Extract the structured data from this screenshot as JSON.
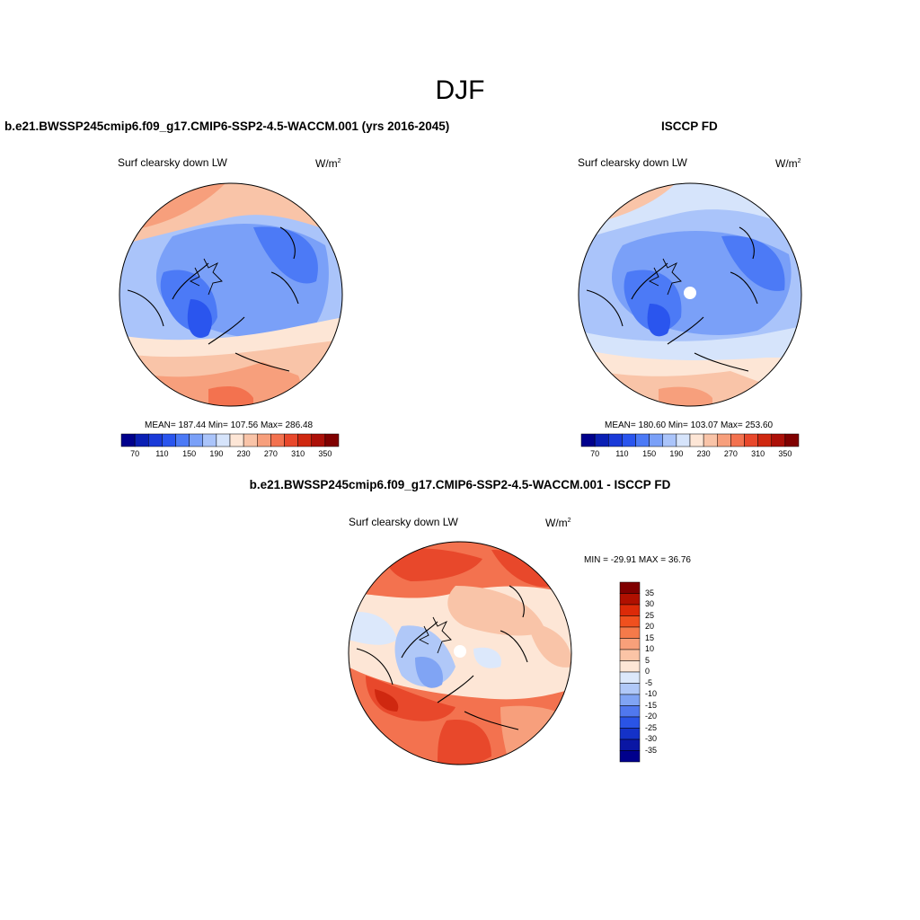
{
  "figure": {
    "title": "DJF"
  },
  "panels": [
    {
      "id": "model",
      "case_title": "b.e21.BWSSP245cmip6.f09_g17.CMIP6-SSP2-4.5-WACCM.001 (yrs 2016-2045)",
      "variable": "Surf clearsky down LW",
      "units_base": "W/m",
      "units_exp": "2",
      "stats": "MEAN= 187.44  Min= 107.56  Max= 286.48",
      "colorbar_labels": [
        "70",
        "110",
        "150",
        "190",
        "230",
        "270",
        "310",
        "350"
      ]
    },
    {
      "id": "obs",
      "case_title": "ISCCP FD",
      "variable": "Surf clearsky down LW",
      "units_base": "W/m",
      "units_exp": "2",
      "stats": "MEAN= 180.60  Min= 103.07  Max= 253.60",
      "colorbar_labels": [
        "70",
        "110",
        "150",
        "190",
        "230",
        "270",
        "310",
        "350"
      ]
    },
    {
      "id": "diff",
      "case_title": "b.e21.BWSSP245cmip6.f09_g17.CMIP6-SSP2-4.5-WACCM.001 - ISCCP FD",
      "variable": "Surf clearsky down LW",
      "units_base": "W/m",
      "units_exp": "2",
      "stats": "MIN = -29.91 MAX =  36.76",
      "colorbar_labels": [
        "35",
        "30",
        "25",
        "20",
        "15",
        "10",
        "5",
        "0",
        "-5",
        "-10",
        "-15",
        "-20",
        "-25",
        "-30",
        "-35"
      ]
    }
  ],
  "colors": {
    "abs_scale": [
      "#00008c",
      "#0a1fb4",
      "#1a3ad8",
      "#2a55ee",
      "#4c7af6",
      "#7aa0f8",
      "#aac4fa",
      "#d6e4fb",
      "#fde6d6",
      "#f9c4a8",
      "#f79f7c",
      "#f3724f",
      "#e8482b",
      "#cf2810",
      "#ac1008",
      "#800000"
    ],
    "diff_scale": [
      "#800000",
      "#b01000",
      "#dc2a08",
      "#f0501e",
      "#f57a4a",
      "#f8a07a",
      "#fbc4a6",
      "#fde6d6",
      "#dce8fb",
      "#b0c8f8",
      "#80a4f4",
      "#5078ee",
      "#2a54e6",
      "#1432c8",
      "#0a16a4",
      "#00008c"
    ]
  }
}
